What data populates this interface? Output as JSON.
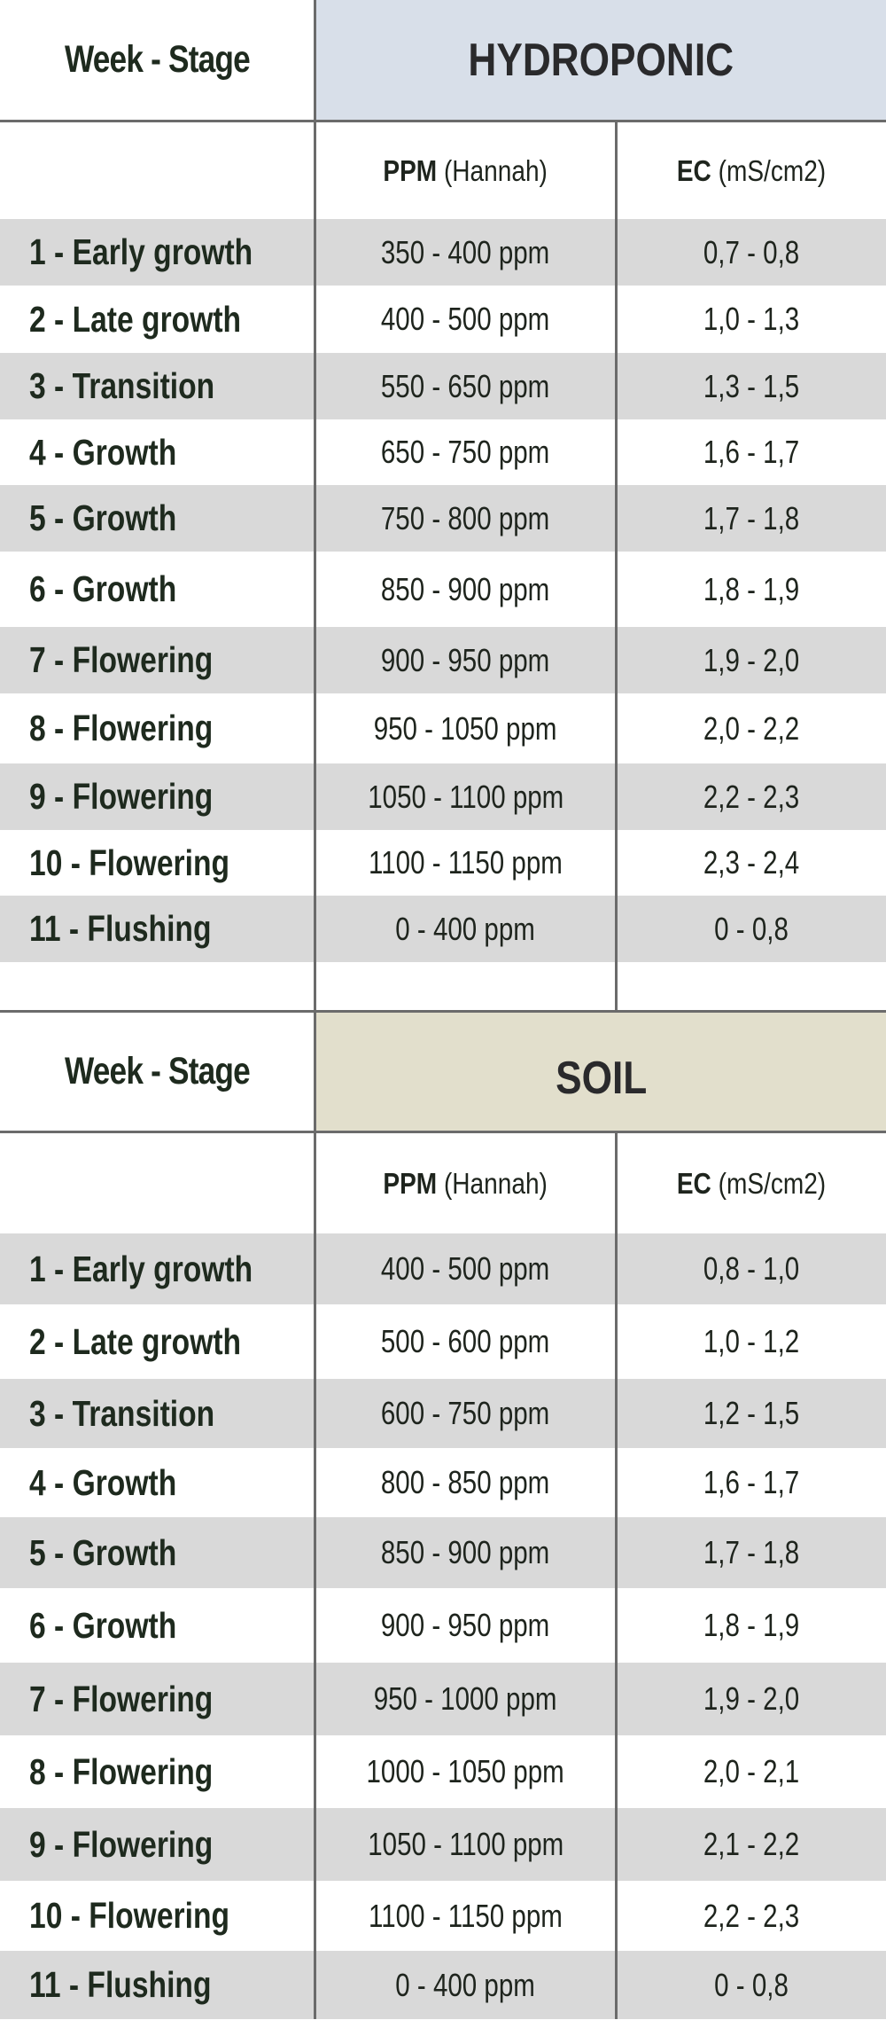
{
  "hydroponic": {
    "week_stage_label": "Week - Stage",
    "title": "HYDROPONIC",
    "title_bg": "#d8dfe9",
    "ppm_header_bold": "PPM",
    "ppm_header_rest": " (Hannah)",
    "ec_header_bold": "EC",
    "ec_header_rest": " (mS/cm2)",
    "rows": [
      {
        "stage": "1 - Early growth",
        "ppm": "350 - 400 ppm",
        "ec": "0,7 - 0,8"
      },
      {
        "stage": "2 - Late growth",
        "ppm": "400 - 500 ppm",
        "ec": "1,0 - 1,3"
      },
      {
        "stage": "3 - Transition",
        "ppm": "550 - 650 ppm",
        "ec": "1,3 - 1,5"
      },
      {
        "stage": "4 - Growth",
        "ppm": "650 - 750 ppm",
        "ec": "1,6 - 1,7"
      },
      {
        "stage": "5 - Growth",
        "ppm": "750 - 800 ppm",
        "ec": "1,7 - 1,8"
      },
      {
        "stage": "6 - Growth",
        "ppm": "850 - 900 ppm",
        "ec": "1,8 - 1,9"
      },
      {
        "stage": "7 - Flowering",
        "ppm": "900 - 950 ppm",
        "ec": "1,9 - 2,0"
      },
      {
        "stage": "8 - Flowering",
        "ppm": "950 - 1050 ppm",
        "ec": "2,0 - 2,2"
      },
      {
        "stage": "9 - Flowering",
        "ppm": "1050 - 1100 ppm",
        "ec": "2,2 - 2,3"
      },
      {
        "stage": "10 - Flowering",
        "ppm": "1100 - 1150 ppm",
        "ec": "2,3 - 2,4"
      },
      {
        "stage": "11 - Flushing",
        "ppm": "0 - 400 ppm",
        "ec": "0 - 0,8"
      }
    ]
  },
  "soil": {
    "week_stage_label": "Week - Stage",
    "title": "SOIL",
    "title_bg": "#e2dfcc",
    "ppm_header_bold": "PPM",
    "ppm_header_rest": " (Hannah)",
    "ec_header_bold": "EC",
    "ec_header_rest": " (mS/cm2)",
    "rows": [
      {
        "stage": "1 - Early growth",
        "ppm": "400 - 500 ppm",
        "ec": "0,8 - 1,0"
      },
      {
        "stage": "2 - Late growth",
        "ppm": "500 - 600 ppm",
        "ec": "1,0 - 1,2"
      },
      {
        "stage": "3 - Transition",
        "ppm": "600 - 750 ppm",
        "ec": "1,2 - 1,5"
      },
      {
        "stage": "4 - Growth",
        "ppm": "800 - 850 ppm",
        "ec": "1,6 - 1,7"
      },
      {
        "stage": "5 - Growth",
        "ppm": "850 - 900 ppm",
        "ec": "1,7 - 1,8"
      },
      {
        "stage": "6 - Growth",
        "ppm": "900 - 950 ppm",
        "ec": "1,8 - 1,9"
      },
      {
        "stage": "7 - Flowering",
        "ppm": "950 - 1000 ppm",
        "ec": "1,9 - 2,0"
      },
      {
        "stage": "8 - Flowering",
        "ppm": "1000 - 1050 ppm",
        "ec": "2,0 - 2,1"
      },
      {
        "stage": "9 - Flowering",
        "ppm": "1050 - 1100 ppm",
        "ec": "2,1 - 2,2"
      },
      {
        "stage": "10 - Flowering",
        "ppm": "1100 - 1150 ppm",
        "ec": "2,2 - 2,3"
      },
      {
        "stage": "11 - Flushing",
        "ppm": "0 - 400 ppm",
        "ec": "0 - 0,8"
      }
    ]
  },
  "colors": {
    "row_gray": "#d9d9d9",
    "row_white": "#ffffff",
    "border": "#6b6b6b",
    "text": "#1e241d"
  }
}
